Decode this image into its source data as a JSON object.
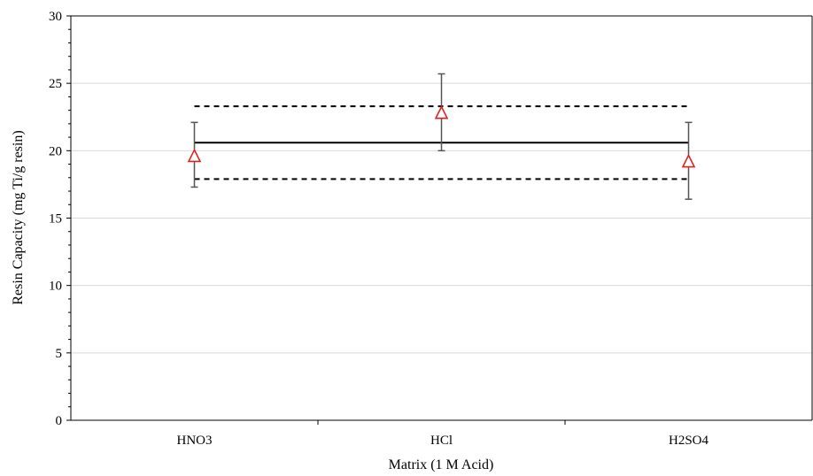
{
  "chart_data": {
    "type": "scatter",
    "title": "",
    "xlabel": "Matrix (1 M Acid)",
    "ylabel": "Resin Capacity (mg Ti/g resin)",
    "categories": [
      "HNO3",
      "HCl",
      "H2SO4"
    ],
    "ylim": [
      0,
      30
    ],
    "yticks": [
      "0",
      "5",
      "10",
      "15",
      "20",
      "25",
      "30"
    ],
    "grid": "horizontal",
    "series": [
      {
        "marker": "open-triangle",
        "color": "#e02020",
        "values": [
          19.6,
          22.8,
          19.2
        ],
        "error_low": [
          17.3,
          20.0,
          16.4
        ],
        "error_high": [
          22.1,
          25.7,
          22.1
        ]
      }
    ],
    "reference_lines": [
      {
        "style": "solid",
        "value": 20.6
      },
      {
        "style": "dashed",
        "value": 23.3
      },
      {
        "style": "dashed",
        "value": 17.9
      }
    ]
  }
}
